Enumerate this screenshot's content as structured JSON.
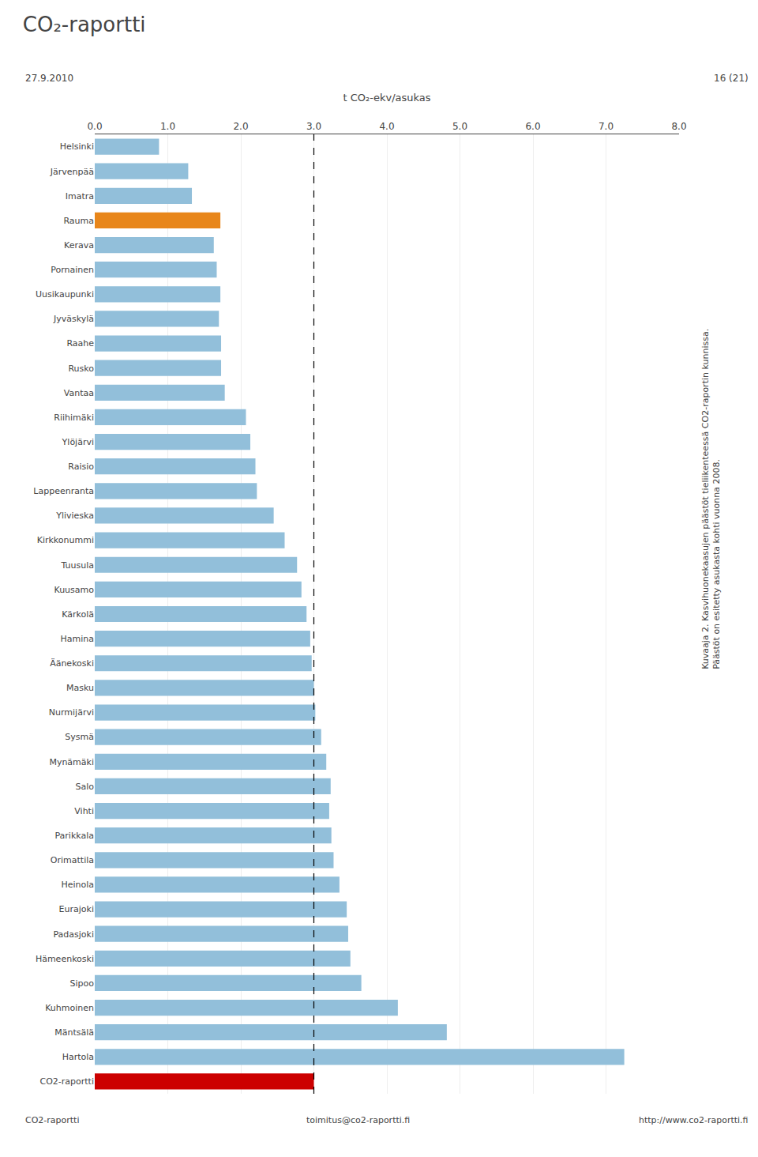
{
  "chart_data": {
    "type": "bar",
    "orientation": "horizontal",
    "title": "CO₂-raportti",
    "x_label": "t CO₂-ekv/asukas",
    "categories": [
      "Helsinki",
      "Järvenpää",
      "Imatra",
      "Rauma",
      "Kerava",
      "Pornainen",
      "Uusikaupunki",
      "Jyväskylä",
      "Raahe",
      "Rusko",
      "Vantaa",
      "Riihimäki",
      "Ylöjärvi",
      "Raisio",
      "Lappeenranta",
      "Ylivieska",
      "Kirkkonummi",
      "Tuusula",
      "Kuusamo",
      "Kärkolä",
      "Hamina",
      "Äänekoski",
      "Masku",
      "Nurmijärvi",
      "Sysmä",
      "Mynämäki",
      "Salo",
      "Vihti",
      "Parikkala",
      "Orimattila",
      "Heinola",
      "Eurajoki",
      "Padasjoki",
      "Hämeenkoski",
      "Sipoo",
      "Kuhmoinen",
      "Mäntsälä",
      "Hartola",
      "CO2-raportti"
    ],
    "values": [
      0.88,
      1.28,
      1.33,
      1.72,
      1.63,
      1.67,
      1.72,
      1.7,
      1.73,
      1.73,
      1.78,
      2.07,
      2.13,
      2.2,
      2.22,
      2.45,
      2.6,
      2.77,
      2.83,
      2.9,
      2.95,
      2.97,
      3.0,
      3.02,
      3.1,
      3.17,
      3.23,
      3.21,
      3.24,
      3.27,
      3.35,
      3.45,
      3.47,
      3.5,
      3.65,
      4.15,
      4.82,
      7.25,
      3.0
    ],
    "colors": [
      "#92BFDA",
      "#92BFDA",
      "#92BFDA",
      "#E8861A",
      "#92BFDA",
      "#92BFDA",
      "#92BFDA",
      "#92BFDA",
      "#92BFDA",
      "#92BFDA",
      "#92BFDA",
      "#92BFDA",
      "#92BFDA",
      "#92BFDA",
      "#92BFDA",
      "#92BFDA",
      "#92BFDA",
      "#92BFDA",
      "#92BFDA",
      "#92BFDA",
      "#92BFDA",
      "#92BFDA",
      "#92BFDA",
      "#92BFDA",
      "#92BFDA",
      "#92BFDA",
      "#92BFDA",
      "#92BFDA",
      "#92BFDA",
      "#92BFDA",
      "#92BFDA",
      "#92BFDA",
      "#92BFDA",
      "#92BFDA",
      "#92BFDA",
      "#92BFDA",
      "#92BFDA",
      "#92BFDA",
      "#CC0000"
    ],
    "xlim": [
      0.0,
      8.0
    ],
    "xticks": [
      {
        "value": 0.0,
        "label": "0.0"
      },
      {
        "value": 1.0,
        "label": "1.0"
      },
      {
        "value": 2.0,
        "label": "2.0"
      },
      {
        "value": 3.0,
        "label": "3.0"
      },
      {
        "value": 4.0,
        "label": "4.0"
      },
      {
        "value": 5.0,
        "label": "5.0"
      },
      {
        "value": 6.0,
        "label": "6.0"
      },
      {
        "value": 7.0,
        "label": "7.0"
      },
      {
        "value": 8.0,
        "label": "8.0"
      }
    ],
    "reference_line": 3.0,
    "line_style": "dashed",
    "grid": true,
    "annotations": [
      "27.9.2010",
      "16 (21)",
      "Kuvaaja 2. Kasvihuonekaasujen päästöt tieliikenteessä CO2-raportin kunnissa.",
      "Päästöt on esitetty asukasta kohti vuonna 2008.",
      "CO2-raportti",
      "toimitus@co2-raportti.fi",
      "http://www.co2-raportti.fi"
    ]
  }
}
